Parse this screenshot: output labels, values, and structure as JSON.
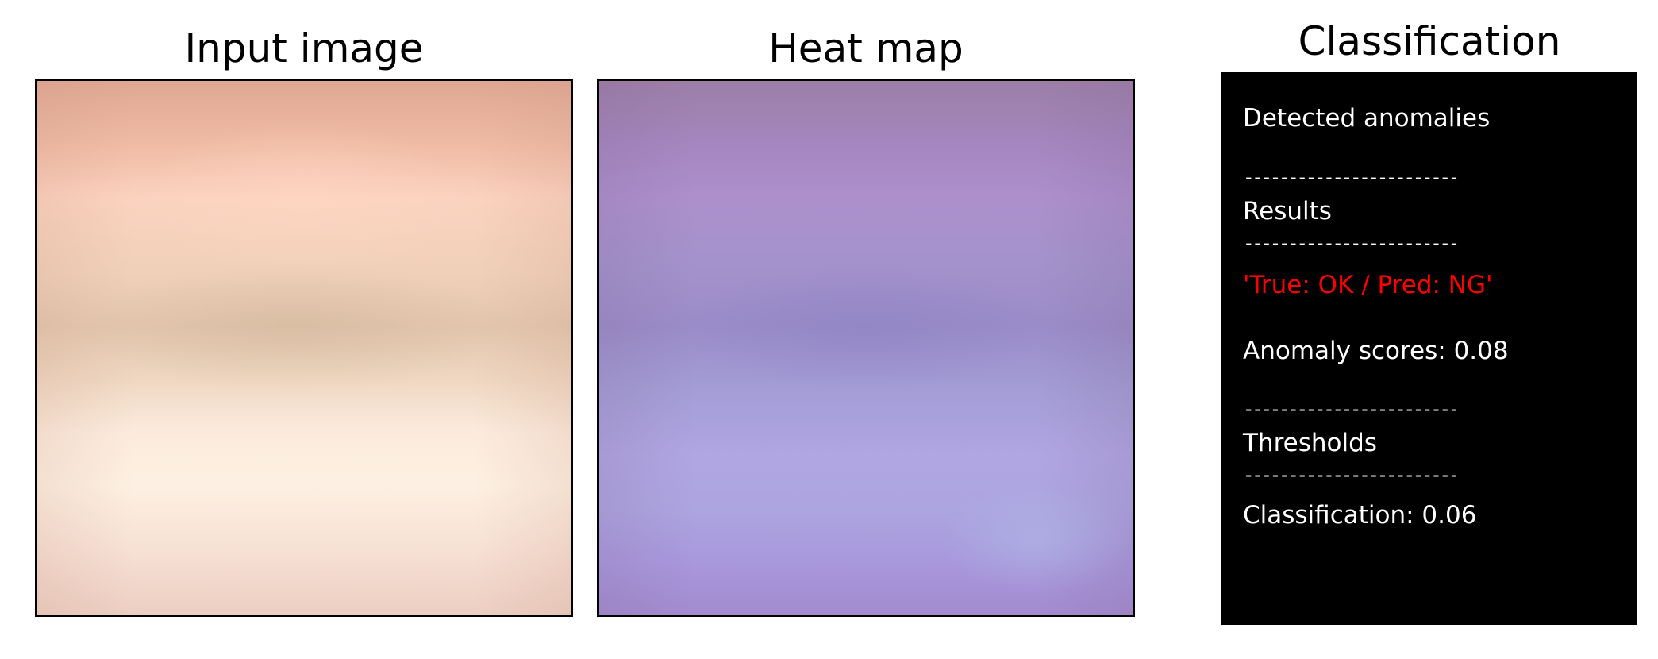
{
  "panels": {
    "input": {
      "title": "Input image"
    },
    "heatmap": {
      "title": "Heat map"
    },
    "classification": {
      "title": "Classification",
      "detected_header": "Detected anomalies",
      "separator": "------------------------",
      "results_header": "Results",
      "prediction": "'True: OK / Pred: NG'",
      "anomaly_score_label": "Anomaly scores: 0.08",
      "thresholds_header": "Thresholds",
      "classification_threshold": "Classification: 0.06"
    }
  },
  "colors": {
    "panel_background": "#000000",
    "panel_text": "#ffffff",
    "prediction_text": "#ff0000",
    "frame_border": "#000000"
  }
}
